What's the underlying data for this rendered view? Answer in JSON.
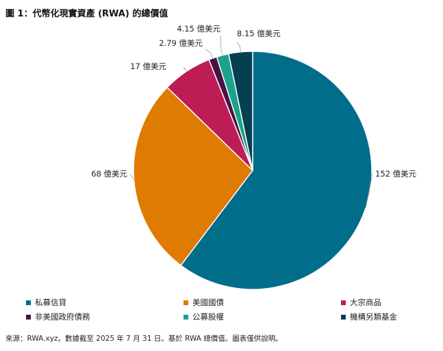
{
  "title": "圖 1：代幣化現實資產 (RWA) 的總價值",
  "source": "來源：RWA.xyz。數據截至 2025 年 7 月 31 日。基於 RWA 總價值。圖表僅供說明。",
  "chart_data": {
    "type": "pie",
    "title": "圖 1：代幣化現實資產 (RWA) 的總價值",
    "unit": "億美元",
    "legend_position": "bottom",
    "slices": [
      {
        "name": "私募信貸",
        "value": 152,
        "label": "152 億美元",
        "color": "#006e8b"
      },
      {
        "name": "美國國債",
        "value": 68,
        "label": "68 億美元",
        "color": "#de7b00"
      },
      {
        "name": "大宗商品",
        "value": 17,
        "label": "17 億美元",
        "color": "#be1c54"
      },
      {
        "name": "非美國政府債務",
        "value": 2.79,
        "label": "2.79 億美元",
        "color": "#4a1244"
      },
      {
        "name": "公募股權",
        "value": 4.15,
        "label": "4.15 億美元",
        "color": "#1aa38a"
      },
      {
        "name": "機構另類基金",
        "value": 8.15,
        "label": "8.15 億美元",
        "color": "#043f52"
      }
    ]
  }
}
